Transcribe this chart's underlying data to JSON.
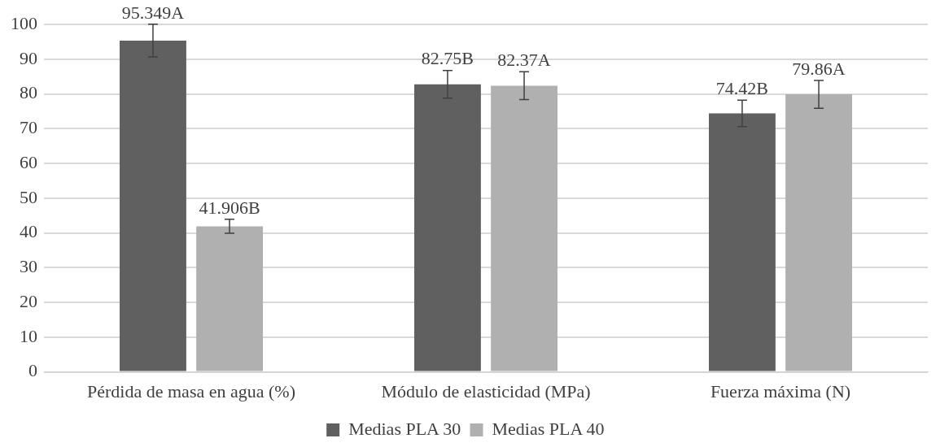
{
  "chart_data": {
    "type": "bar",
    "categories": [
      "Pérdida de masa en agua (%)",
      "Módulo de elasticidad (MPa)",
      "Fuerza máxima (N)"
    ],
    "series": [
      {
        "name": "Medias PLA 30",
        "color": "#606060",
        "values": [
          95.349,
          82.75,
          74.42
        ],
        "errors": [
          4.7,
          4,
          3.8
        ],
        "value_labels": [
          "95.349A",
          "82.75B",
          "74.42B"
        ]
      },
      {
        "name": "Medias PLA 40",
        "color": "#b0b0b0",
        "values": [
          41.906,
          82.37,
          79.86
        ],
        "errors": [
          2,
          4,
          4
        ],
        "value_labels": [
          "41.906B",
          "82.37A",
          "79.86A"
        ]
      }
    ],
    "ylim": [
      0,
      100
    ],
    "yticks": [
      0,
      10,
      20,
      30,
      40,
      50,
      60,
      70,
      80,
      90,
      100
    ],
    "grid": "y",
    "legend": "bottom"
  }
}
